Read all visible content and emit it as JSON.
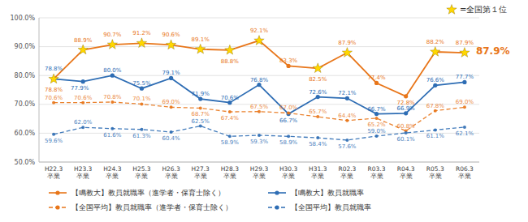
{
  "chart_data": {
    "type": "line",
    "categories": [
      "H22.3卒業",
      "H23.3卒業",
      "H24.3卒業",
      "H25.3卒業",
      "H26.3卒業",
      "H27.3卒業",
      "H28.3卒業",
      "H29.3卒業",
      "H30.3卒業",
      "H31.3卒業",
      "R02.3卒業",
      "R03.3卒業",
      "R04.3卒業",
      "R05.3卒業",
      "R06.3卒業"
    ],
    "series": [
      {
        "name": "【鳴教大】教員就職率（進学者・保育士除く）",
        "color": "#E8761A",
        "line_style": "solid",
        "marker": "circle",
        "values": [
          78.8,
          88.9,
          90.7,
          91.2,
          90.6,
          89.1,
          88.8,
          92.1,
          83.3,
          82.5,
          87.9,
          77.4,
          72.8,
          88.2,
          87.9
        ],
        "value_labels": [
          "78.8%",
          "88.9%",
          "90.7%",
          "91.2%",
          "90.6%",
          "89.1%",
          "88.8%",
          "92.1%",
          "83.3%",
          "82.5%",
          "87.9%",
          "77.4%",
          "72.8%",
          "88.2%",
          "87.9%"
        ],
        "stars": {
          "label": "=全国第１位",
          "color": "#FFD700",
          "categories": [
            "H22.3卒業",
            "H23.3卒業",
            "H24.3卒業",
            "H25.3卒業",
            "H26.3卒業",
            "H27.3卒業",
            "H28.3卒業",
            "H29.3卒業",
            "H31.3卒業",
            "R02.3卒業",
            "R05.3卒業",
            "R06.3卒業"
          ]
        }
      },
      {
        "name": "【鳴教大】教員就職率",
        "color": "#2E6DB4",
        "line_style": "solid",
        "marker": "circle",
        "values": [
          78.8,
          77.9,
          80.0,
          75.5,
          79.1,
          71.9,
          70.6,
          76.8,
          66.7,
          72.6,
          72.1,
          66.7,
          66.9,
          76.6,
          77.7
        ],
        "value_labels": [
          "78.8%",
          "77.9%",
          "80.0%",
          "75.5%",
          "79.1%",
          "71.9%",
          "70.6%",
          "76.8%",
          "66.7%",
          "72.6%",
          "72.1%",
          "66.7%",
          "66.9%",
          "76.6%",
          "77.7%"
        ]
      },
      {
        "name": "【全国平均】教員就職率（進学者・保育士除く）",
        "color": "#E8761A",
        "line_style": "dashed",
        "marker": "circle",
        "values": [
          70.6,
          70.6,
          70.8,
          70.1,
          69.0,
          68.7,
          67.4,
          67.5,
          67.0,
          65.7,
          64.4,
          65.2,
          60.8,
          67.8,
          69.0
        ],
        "value_labels": [
          "70.6%",
          "70.6%",
          "70.8%",
          "70.1%",
          "69.0%",
          "68.7%",
          "67.4%",
          "67.5%",
          "67.0%",
          "65.7%",
          "64.4%",
          "65.2%",
          "60.8%",
          "67.8%",
          "69.0%"
        ]
      },
      {
        "name": "【全国平均】教員就職率",
        "color": "#2E6DB4",
        "line_style": "dashed",
        "marker": "circle",
        "values": [
          59.6,
          62.0,
          61.6,
          61.3,
          60.4,
          62.5,
          58.9,
          59.3,
          58.9,
          58.4,
          57.6,
          59.0,
          60.1,
          61.1,
          62.1
        ],
        "value_labels": [
          "59.6%",
          "62.0%",
          "61.6%",
          "61.3%",
          "60.4%",
          "62.5%",
          "58.9%",
          "59.3%",
          "58.9%",
          "58.4%",
          "57.6%",
          "59.0%",
          "60.1%",
          "61.1%",
          "62.1%"
        ]
      }
    ],
    "ylim": [
      50.0,
      100.0
    ],
    "yticks": [
      {
        "value": 50.0,
        "label": "50.0%"
      },
      {
        "value": 60.0,
        "label": "60.0%"
      },
      {
        "value": 70.0,
        "label": "70.0%"
      },
      {
        "value": 80.0,
        "label": "80.0%"
      },
      {
        "value": 90.0,
        "label": "90.0%"
      },
      {
        "value": 100.0,
        "label": "100.0%"
      }
    ],
    "grid": true,
    "legend": "bottom",
    "data_labels": true,
    "annotations": [
      {
        "text": "87.9%",
        "x": "R06.3卒業",
        "y": 87.9,
        "color": "#E8761A"
      }
    ]
  }
}
